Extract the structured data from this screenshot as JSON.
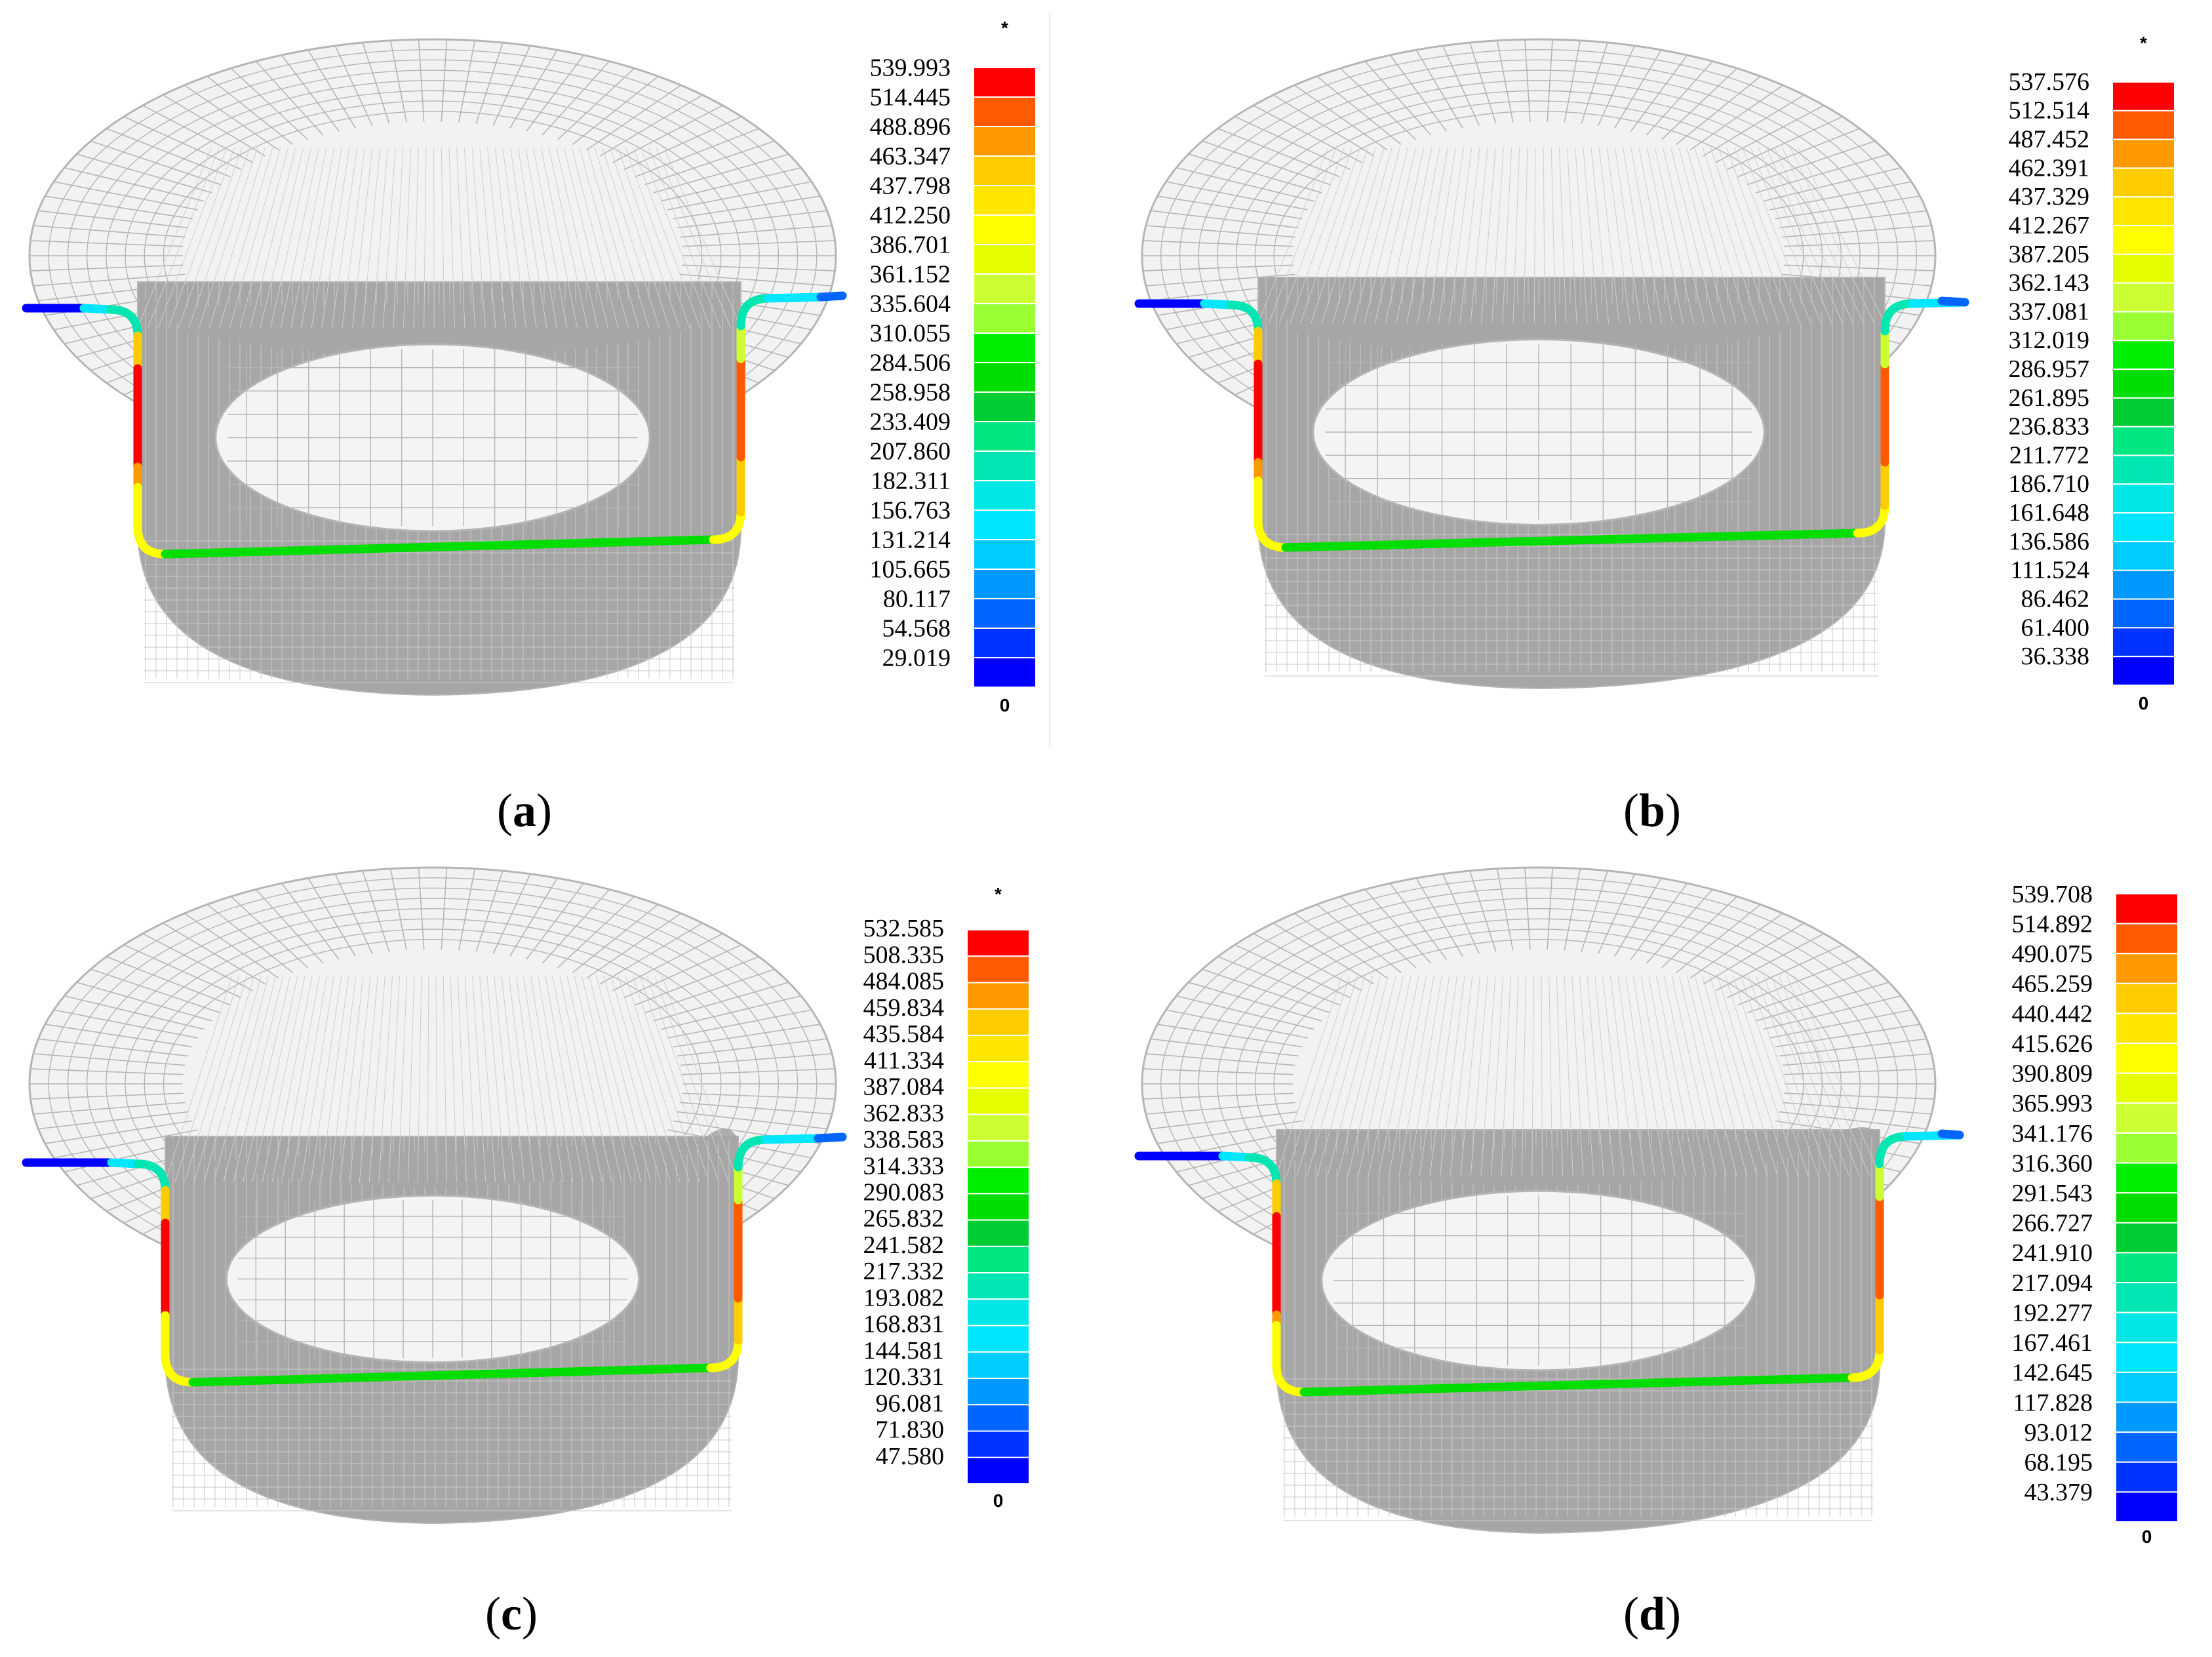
{
  "panels": [
    {
      "letter": "a",
      "scale_max": "539.993",
      "scale_values": [
        "539.993",
        "514.445",
        "488.896",
        "463.347",
        "437.798",
        "412.250",
        "386.701",
        "361.152",
        "335.604",
        "310.055",
        "284.506",
        "258.958",
        "233.409",
        "207.860",
        "182.311",
        "156.763",
        "131.214",
        "105.665",
        "80.117",
        "54.568",
        "29.019"
      ],
      "scale_footer": "0",
      "scale_star": "*"
    },
    {
      "letter": "b",
      "scale_values": [
        "537.576",
        "512.514",
        "487.452",
        "462.391",
        "437.329",
        "412.267",
        "387.205",
        "362.143",
        "337.081",
        "312.019",
        "286.957",
        "261.895",
        "236.833",
        "211.772",
        "186.710",
        "161.648",
        "136.586",
        "111.524",
        "86.462",
        "61.400",
        "36.338"
      ],
      "scale_footer": "0",
      "scale_star": "*"
    },
    {
      "letter": "c",
      "scale_values": [
        "532.585",
        "508.335",
        "484.085",
        "459.834",
        "435.584",
        "411.334",
        "387.084",
        "362.833",
        "338.583",
        "314.333",
        "290.083",
        "265.832",
        "241.582",
        "217.332",
        "193.082",
        "168.831",
        "144.581",
        "120.331",
        "96.081",
        "71.830",
        "47.580"
      ],
      "scale_footer": "0",
      "scale_star": "*"
    },
    {
      "letter": "d",
      "scale_values": [
        "539.708",
        "514.892",
        "490.075",
        "465.259",
        "440.442",
        "415.626",
        "390.809",
        "365.993",
        "341.176",
        "316.360",
        "291.543",
        "266.727",
        "241.910",
        "217.094",
        "192.277",
        "167.461",
        "142.645",
        "117.828",
        "93.012",
        "68.195",
        "43.379"
      ],
      "scale_footer": "0",
      "scale_star": ""
    }
  ],
  "colors": {
    "scale": [
      "#ff0000",
      "#ff5a00",
      "#ff9900",
      "#ffcc00",
      "#ffe600",
      "#ffff00",
      "#e6ff00",
      "#ccff33",
      "#99ff33",
      "#00ee00",
      "#00dd00",
      "#00cc33",
      "#00e680",
      "#00e6b3",
      "#00e6e6",
      "#00e6ff",
      "#00ccff",
      "#0099ff",
      "#0066ff",
      "#0033ff",
      "#0000ff"
    ],
    "mesh": "#b5b5b5",
    "mesh_dense": "#a6a6a6"
  }
}
